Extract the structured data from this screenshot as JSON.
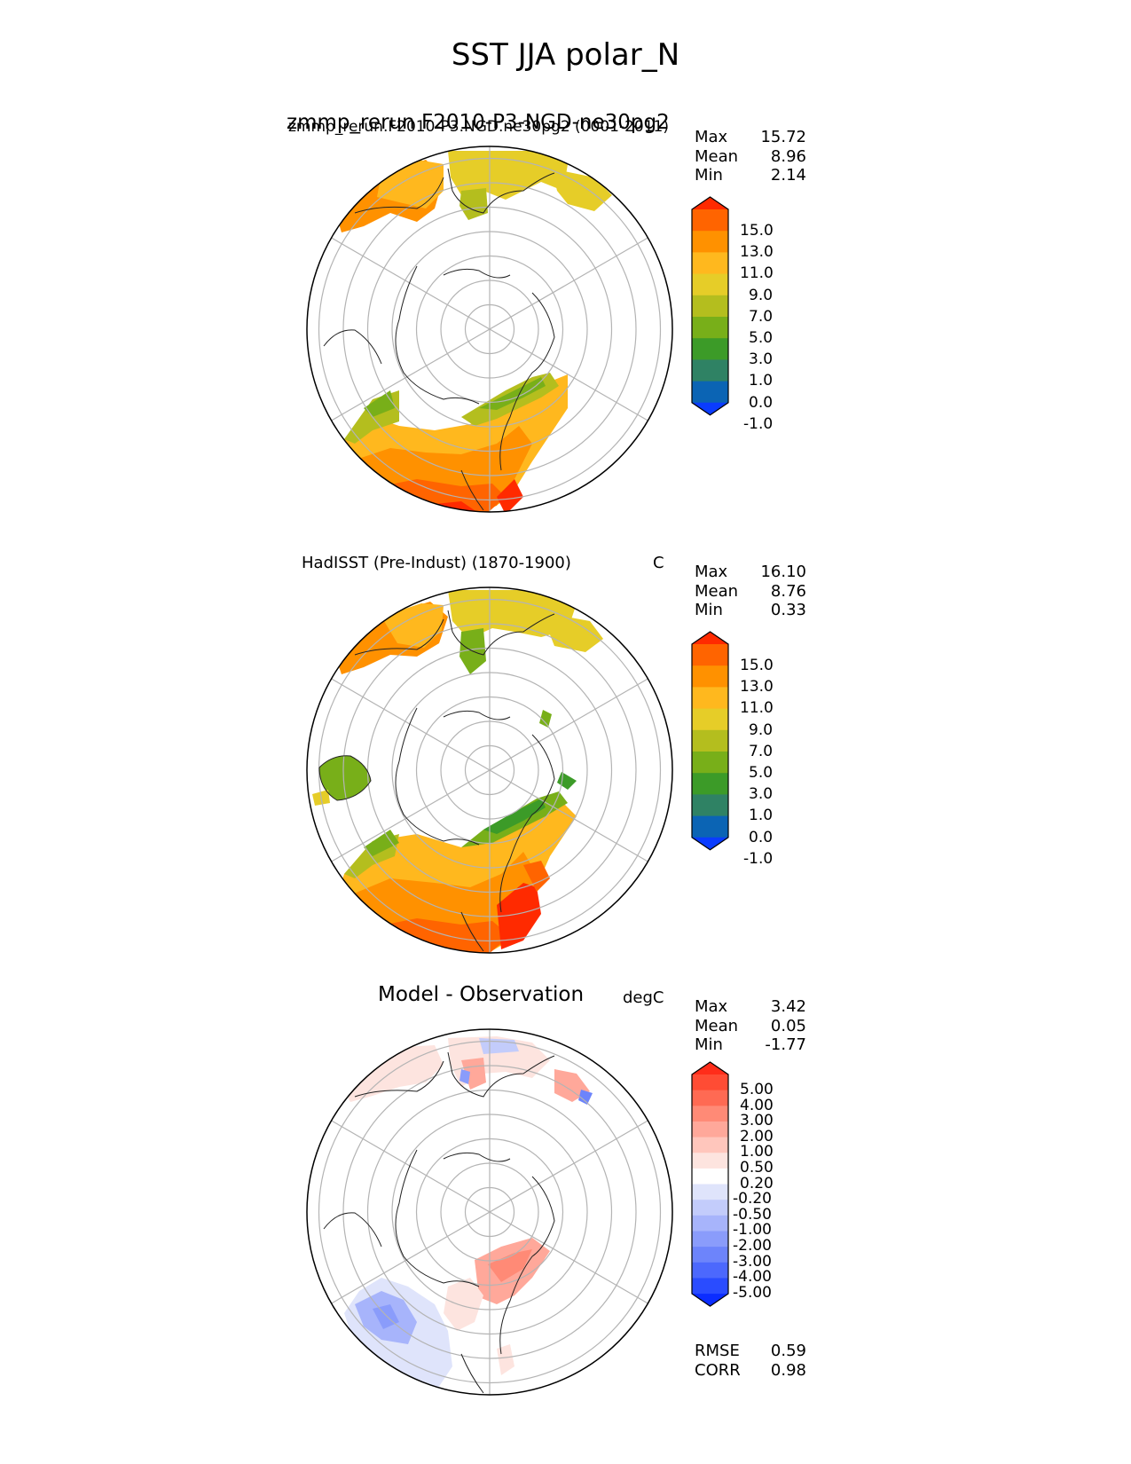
{
  "figure": {
    "title": "SST JJA polar_N"
  },
  "panels": [
    {
      "title_left_overlap_a": "zmmp_rerun F2010-P3-NGD-ne30pg2",
      "title_left_overlap_b": "zmmp_rerun.F2010-P3.NGD.ne30pg2 (0001-2011)",
      "units": "",
      "stats": [
        {
          "label": "Max",
          "value": "15.72"
        },
        {
          "label": "Mean",
          "value": "8.96"
        },
        {
          "label": "Min",
          "value": "2.14"
        }
      ]
    },
    {
      "title_left": "HadISST (Pre-Indust) (1870-1900)",
      "units": "C",
      "stats": [
        {
          "label": "Max",
          "value": "16.10"
        },
        {
          "label": "Mean",
          "value": "8.76"
        },
        {
          "label": "Min",
          "value": "0.33"
        }
      ]
    },
    {
      "title_center": "Model - Observation",
      "units": "degC",
      "stats": [
        {
          "label": "Max",
          "value": "3.42"
        },
        {
          "label": "Mean",
          "value": "0.05"
        },
        {
          "label": "Min",
          "value": "-1.77"
        }
      ],
      "metrics": [
        {
          "label": "RMSE",
          "value": "0.59"
        },
        {
          "label": "CORR",
          "value": "0.98"
        }
      ]
    }
  ],
  "colorbars": {
    "sst": {
      "levels": [
        "15.0",
        "13.0",
        "11.0",
        "9.0",
        "7.0",
        "5.0",
        "3.0",
        "1.0",
        "0.0",
        "-1.0"
      ],
      "colors": [
        "#ff2a00",
        "#ff6400",
        "#ff9100",
        "#ffb81e",
        "#e6cd28",
        "#b4be1e",
        "#78af19",
        "#3c9b28",
        "#2f8264",
        "#0b64b4",
        "#0a3cff"
      ]
    },
    "diff": {
      "levels": [
        "5.00",
        "4.00",
        "3.00",
        "2.00",
        "1.00",
        "0.50",
        "0.20",
        "-0.20",
        "-0.50",
        "-1.00",
        "-2.00",
        "-3.00",
        "-4.00",
        "-5.00"
      ],
      "colors": [
        "#ff2d1a",
        "#ff4c34",
        "#ff6a53",
        "#ff8a76",
        "#ffa89a",
        "#ffc6bc",
        "#fde4df",
        "#ffffff",
        "#dfe4fb",
        "#c3ccfb",
        "#a7b4fb",
        "#8a9cfb",
        "#6d84fb",
        "#4c68fd",
        "#2a4cff",
        "#0b2dff"
      ]
    }
  },
  "map": {
    "projection": "north polar stereographic",
    "gridline_color": "#b4b4b4",
    "coastline_color": "#222222"
  }
}
